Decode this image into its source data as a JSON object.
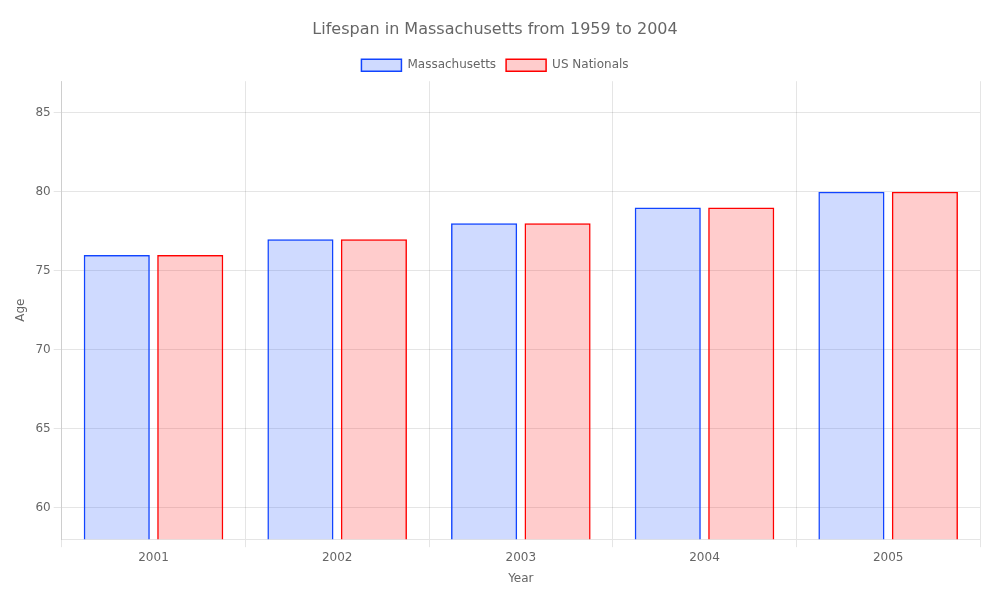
{
  "chart_data": {
    "type": "bar",
    "title": "Lifespan in Massachusetts from 1959 to 2004",
    "x_label": "Year",
    "y_label": "Age",
    "categories": [
      "2001",
      "2002",
      "2003",
      "2004",
      "2005"
    ],
    "series": [
      {
        "name": "Massachusetts",
        "color": "#1144ff",
        "values": [
          76,
          77,
          78,
          79,
          80
        ]
      },
      {
        "name": "US Nationals",
        "color": "#ff0000",
        "values": [
          76,
          77,
          78,
          79,
          80
        ]
      }
    ],
    "ylim": [
      58,
      87
    ],
    "yticks": [
      60,
      65,
      70,
      75,
      80,
      85
    ],
    "grid": true,
    "legend": "top"
  }
}
